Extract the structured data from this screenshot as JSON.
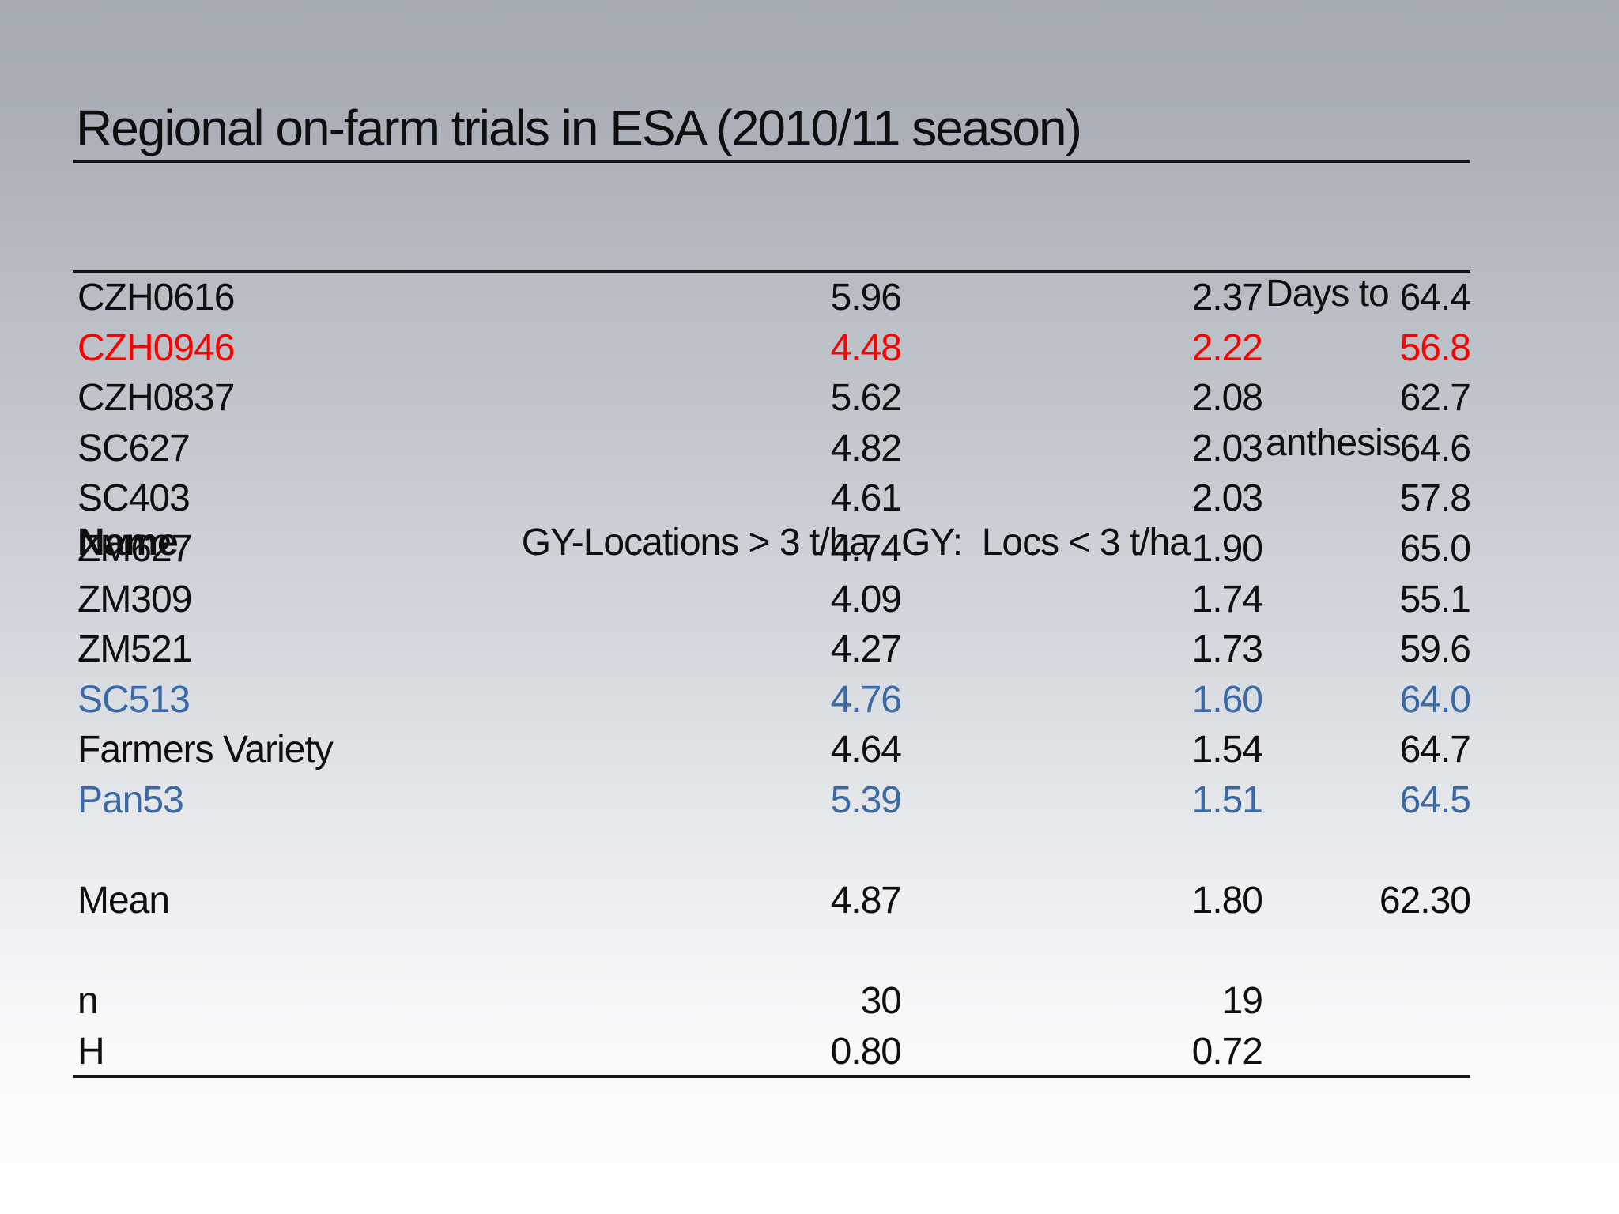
{
  "slide": {
    "title": "Regional on-farm trials in ESA (2010/11 season)",
    "colors": {
      "background_top": "#a6abb3",
      "background_bottom": "#fefefe",
      "text_default": "#0f0f0f",
      "highlight_red": "#ff0000",
      "highlight_blue": "#3a69a5",
      "rule_line": "#151515"
    }
  },
  "table": {
    "header": {
      "name": "Name",
      "gy_high": "GY-Locations > 3 t/ha",
      "gy_low": "GY:  Locs < 3 t/ha",
      "days_line1": "Days to",
      "days_line2": "anthesis"
    },
    "rows": [
      {
        "name": "CZH0616",
        "gy_high": "5.96",
        "gy_low": "2.37",
        "days": "64.4",
        "color": "default"
      },
      {
        "name": "CZH0946",
        "gy_high": "4.48",
        "gy_low": "2.22",
        "days": "56.8",
        "color": "red"
      },
      {
        "name": "CZH0837",
        "gy_high": "5.62",
        "gy_low": "2.08",
        "days": "62.7",
        "color": "default"
      },
      {
        "name": "SC627",
        "gy_high": "4.82",
        "gy_low": "2.03",
        "days": "64.6",
        "color": "default"
      },
      {
        "name": "SC403",
        "gy_high": "4.61",
        "gy_low": "2.03",
        "days": "57.8",
        "color": "default"
      },
      {
        "name": "ZM627",
        "gy_high": "4.74",
        "gy_low": "1.90",
        "days": "65.0",
        "color": "default"
      },
      {
        "name": "ZM309",
        "gy_high": "4.09",
        "gy_low": "1.74",
        "days": "55.1",
        "color": "default"
      },
      {
        "name": "ZM521",
        "gy_high": "4.27",
        "gy_low": "1.73",
        "days": "59.6",
        "color": "default"
      },
      {
        "name": "SC513",
        "gy_high": "4.76",
        "gy_low": "1.60",
        "days": "64.0",
        "color": "blue"
      },
      {
        "name": "Farmers Variety",
        "gy_high": "4.64",
        "gy_low": "1.54",
        "days": "64.7",
        "color": "default"
      },
      {
        "name": "Pan53",
        "gy_high": "5.39",
        "gy_low": "1.51",
        "days": "64.5",
        "color": "blue"
      }
    ],
    "summary": [
      {
        "name": "Mean",
        "gy_high": "4.87",
        "gy_low": "1.80",
        "days": "62.30",
        "color": "default",
        "spacer_before": true
      },
      {
        "name": "n",
        "gy_high": "30",
        "gy_low": "19",
        "days": "",
        "color": "default",
        "spacer_before": true
      },
      {
        "name": "H",
        "gy_high": "0.80",
        "gy_low": "0.72",
        "days": "",
        "color": "default",
        "spacer_before": false
      }
    ]
  }
}
